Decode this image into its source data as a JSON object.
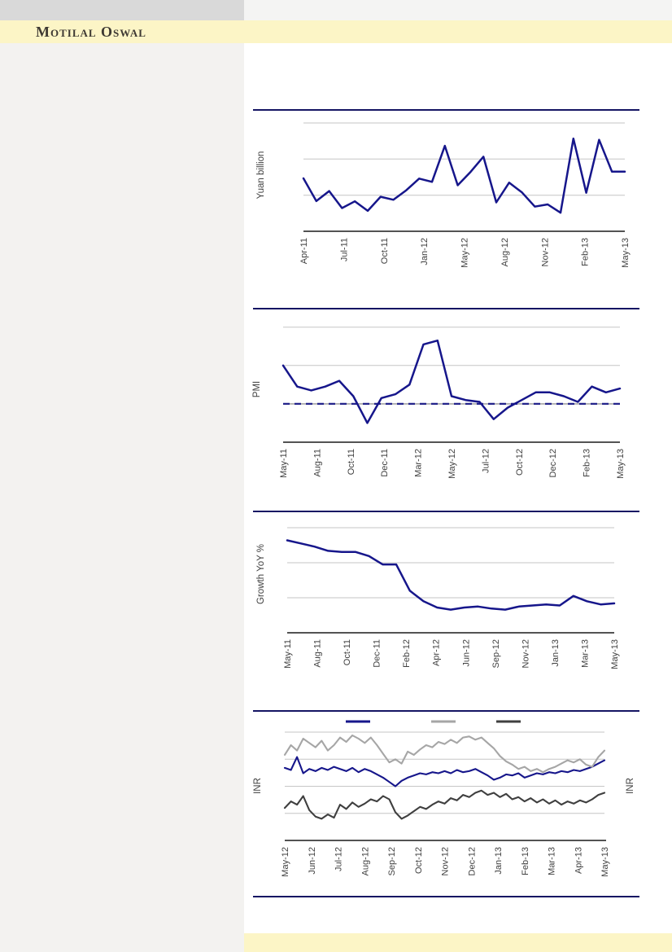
{
  "page": {
    "brand": "Motilal Oswal"
  },
  "colors": {
    "accent_navy": "#16168b",
    "separator_navy": "#151563",
    "gridline": "#c6c6c6",
    "axis": "#1a1a1a",
    "series_gray": "#a6a6a6",
    "series_dark": "#3f3f3f",
    "tick_text": "#404040",
    "header_yellow": "#fcf5c6",
    "topbar_gray": "#d9d9d9",
    "sidebar_gray": "#f3f2f0"
  },
  "chart_data": [
    {
      "type": "line",
      "title": "",
      "y_axis_label": "Yuan billion",
      "x_tick_labels": [
        "Apr-11",
        "Jul-11",
        "Oct-11",
        "Jan-12",
        "May-12",
        "Aug-12",
        "Nov-12",
        "Feb-13",
        "May-13"
      ],
      "y_ticks_unlabeled": true,
      "ylim": [
        300,
        1254
      ],
      "gridline_values": [
        600,
        900,
        1200
      ],
      "series": [
        {
          "name": "monthly-value-yuan-bn",
          "color": "#16168b",
          "values": [
            740,
            551,
            634,
            493,
            549,
            470,
            587,
            562,
            641,
            738,
            711,
            1010,
            682,
            793,
            920,
            540,
            704,
            623,
            505,
            523,
            454,
            1070,
            620,
            1060,
            795,
            795
          ]
        }
      ],
      "note": "Monthly series Apr-11 to May-13; y gridlines carry no numeric labels, values estimated from gridline spacing."
    },
    {
      "type": "line",
      "title": "",
      "y_axis_label": "PMI",
      "x_tick_labels": [
        "May-11",
        "Aug-11",
        "Oct-11",
        "Dec-11",
        "Mar-12",
        "May-12",
        "Jul-12",
        "Oct-12",
        "Dec-12",
        "Feb-13",
        "May-13"
      ],
      "y_ticks_unlabeled": true,
      "ylim": [
        48,
        54.4
      ],
      "gridline_values": [
        52,
        54
      ],
      "reference_line": {
        "value": 50,
        "style": "dashed",
        "color": "#23238b",
        "underlay_color": "#a6a6a6"
      },
      "series": [
        {
          "name": "pmi",
          "color": "#16168b",
          "values": [
            52.0,
            50.9,
            50.7,
            50.9,
            51.2,
            50.4,
            49.0,
            50.3,
            50.5,
            51.0,
            53.1,
            53.3,
            50.4,
            50.2,
            50.1,
            49.2,
            49.8,
            50.2,
            50.6,
            50.6,
            50.4,
            50.1,
            50.9,
            50.6,
            50.8
          ]
        }
      ],
      "note": "Monthly PMI May-11 to May-13 with dashed reference line at 50."
    },
    {
      "type": "line",
      "title": "",
      "y_axis_label": "Growth YoY %",
      "x_tick_labels": [
        "May-11",
        "Aug-11",
        "Oct-11",
        "Dec-11",
        "Feb-12",
        "Apr-12",
        "Jun-12",
        "Sep-12",
        "Nov-12",
        "Jan-13",
        "Mar-13",
        "May-13"
      ],
      "y_ticks_unlabeled": true,
      "ylim": [
        0,
        104
      ],
      "gridline_values": [
        33.3,
        66.7,
        100
      ],
      "series": [
        {
          "name": "growth-yoy",
          "color": "#16168b",
          "values": [
            88,
            85,
            82,
            78,
            77,
            77,
            73,
            65,
            65,
            40,
            30,
            24,
            22,
            24,
            25,
            23,
            22,
            25,
            26,
            27,
            26,
            35,
            30,
            27,
            28
          ]
        }
      ],
      "note": "Values are percent of plot height (no numeric y tick labels visible in source)."
    },
    {
      "type": "line",
      "title": "",
      "y_axis_label": "INR",
      "y_axis_label_right": "INR",
      "x_tick_labels": [
        "May-12",
        "Jun-12",
        "Jul-12",
        "Aug-12",
        "Sep-12",
        "Oct-12",
        "Nov-12",
        "Dec-12",
        "Jan-13",
        "Feb-13",
        "Mar-13",
        "Apr-13",
        "May-13"
      ],
      "y_ticks_unlabeled": true,
      "ylim": [
        0,
        100
      ],
      "gridline_values": [
        25,
        50,
        75,
        100
      ],
      "legend": {
        "swatches_only": true,
        "entries": [
          {
            "label": "",
            "color": "#16168b"
          },
          {
            "label": "",
            "color": "#a6a6a6"
          },
          {
            "label": "",
            "color": "#3f3f3f"
          }
        ]
      },
      "series": [
        {
          "name": "inr-series-navy",
          "color": "#16168b",
          "values": [
            67,
            65,
            77,
            62,
            66,
            64,
            67,
            65,
            68,
            66,
            64,
            67,
            63,
            66,
            64,
            61,
            58,
            54,
            50,
            55,
            58,
            60,
            62,
            61,
            63,
            62,
            64,
            62,
            65,
            63,
            64,
            66,
            63,
            60,
            56,
            58,
            61,
            60,
            62,
            58,
            60,
            62,
            61,
            63,
            62,
            64,
            63,
            65,
            64,
            66,
            68,
            71,
            74
          ]
        },
        {
          "name": "inr-series-gray",
          "color": "#a6a6a6",
          "values": [
            79,
            88,
            83,
            94,
            90,
            86,
            92,
            83,
            88,
            95,
            91,
            97,
            94,
            90,
            95,
            88,
            80,
            72,
            75,
            71,
            82,
            79,
            84,
            88,
            86,
            91,
            89,
            93,
            90,
            95,
            96,
            93,
            95,
            90,
            85,
            78,
            73,
            70,
            66,
            68,
            64,
            66,
            63,
            66,
            68,
            71,
            74,
            72,
            75,
            70,
            68,
            77,
            83
          ]
        },
        {
          "name": "inr-series-dark",
          "color": "#3f3f3f",
          "values": [
            30,
            36,
            33,
            41,
            28,
            22,
            20,
            24,
            21,
            33,
            29,
            35,
            31,
            34,
            38,
            36,
            41,
            38,
            26,
            20,
            23,
            27,
            31,
            29,
            33,
            36,
            34,
            39,
            37,
            42,
            40,
            44,
            46,
            42,
            44,
            40,
            43,
            38,
            40,
            36,
            39,
            35,
            38,
            34,
            37,
            33,
            36,
            34,
            37,
            35,
            38,
            42,
            44
          ]
        }
      ],
      "note": "Daily currency series May-12 to May-13, values are percent of plot height; legend shows colour swatches only (no visible text labels)."
    }
  ]
}
